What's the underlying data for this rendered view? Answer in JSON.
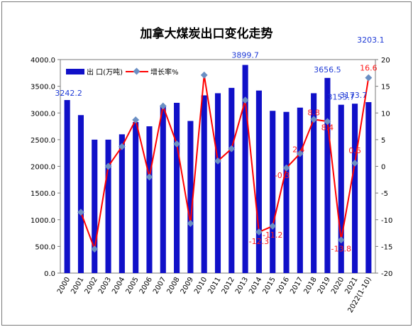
{
  "colors": {
    "bar": "#1010c8",
    "line": "#ff0000",
    "marker": "#6a8fc4",
    "blue_label": "#1f3bd6",
    "red_label": "#ff1a1a"
  },
  "chart_data": {
    "type": "bar",
    "title": "加拿大煤炭出口变化走势",
    "categories": [
      "2000",
      "2001",
      "2002",
      "2003",
      "2004",
      "2005",
      "2006",
      "2007",
      "2008",
      "2009",
      "2010",
      "2011",
      "2012",
      "2013",
      "2014",
      "2015",
      "2016",
      "2017",
      "2018",
      "2019",
      "2020",
      "2021",
      "2022(1-10)"
    ],
    "y_left": {
      "range": [
        0,
        4000
      ],
      "ticks": [
        "0.0",
        "500.0",
        "1000.0",
        "1500.0",
        "2000.0",
        "2500.0",
        "3000.0",
        "3500.0",
        "4000.0"
      ]
    },
    "y_right": {
      "range": [
        -20,
        20
      ],
      "ticks": [
        "-20",
        "-15",
        "-10",
        "-5",
        "0",
        "5",
        "10",
        "15",
        "20"
      ]
    },
    "series": [
      {
        "name": "出 口(万吨)",
        "type": "bar",
        "axis": "left",
        "values": [
          3242.2,
          2960,
          2500,
          2500,
          2600,
          2830,
          2750,
          3120,
          3190,
          2850,
          3330,
          3370,
          3470,
          3899.7,
          3420,
          3040,
          3020,
          3100,
          3370,
          3656.5,
          3153.7,
          3173.7,
          3203.1
        ]
      },
      {
        "name": "增长率%",
        "type": "line",
        "axis": "right",
        "values": [
          null,
          -8.6,
          -15.5,
          0,
          3.7,
          8.7,
          -2,
          11.3,
          4.2,
          -10.7,
          17.1,
          1,
          3.3,
          12.4,
          -12.3,
          -11.2,
          -0.3,
          2.4,
          8.8,
          8.4,
          -13.8,
          0.6,
          16.6
        ]
      }
    ],
    "bar_labels": [
      {
        "index": 0,
        "text": "3242.2"
      },
      {
        "index": 13,
        "text": "3899.7"
      },
      {
        "index": 19,
        "text": "3656.5"
      },
      {
        "index": 20,
        "text": "3153.7"
      },
      {
        "index": 21,
        "text": "3173.7"
      },
      {
        "index": 22,
        "text": "3203.1"
      }
    ],
    "line_labels": [
      {
        "index": 14,
        "text": "-12.3"
      },
      {
        "index": 15,
        "text": "-11.2"
      },
      {
        "index": 16,
        "text": "-0.3"
      },
      {
        "index": 17,
        "text": "2.4"
      },
      {
        "index": 18,
        "text": "8.8"
      },
      {
        "index": 19,
        "text": "8.4"
      },
      {
        "index": 20,
        "text": "-13.8"
      },
      {
        "index": 21,
        "text": "0.6"
      },
      {
        "index": 22,
        "text": "16.6"
      }
    ],
    "legend": {
      "placement": "top-left",
      "entries": [
        "出 口(万吨)",
        "增长率%"
      ]
    },
    "grid": false
  }
}
